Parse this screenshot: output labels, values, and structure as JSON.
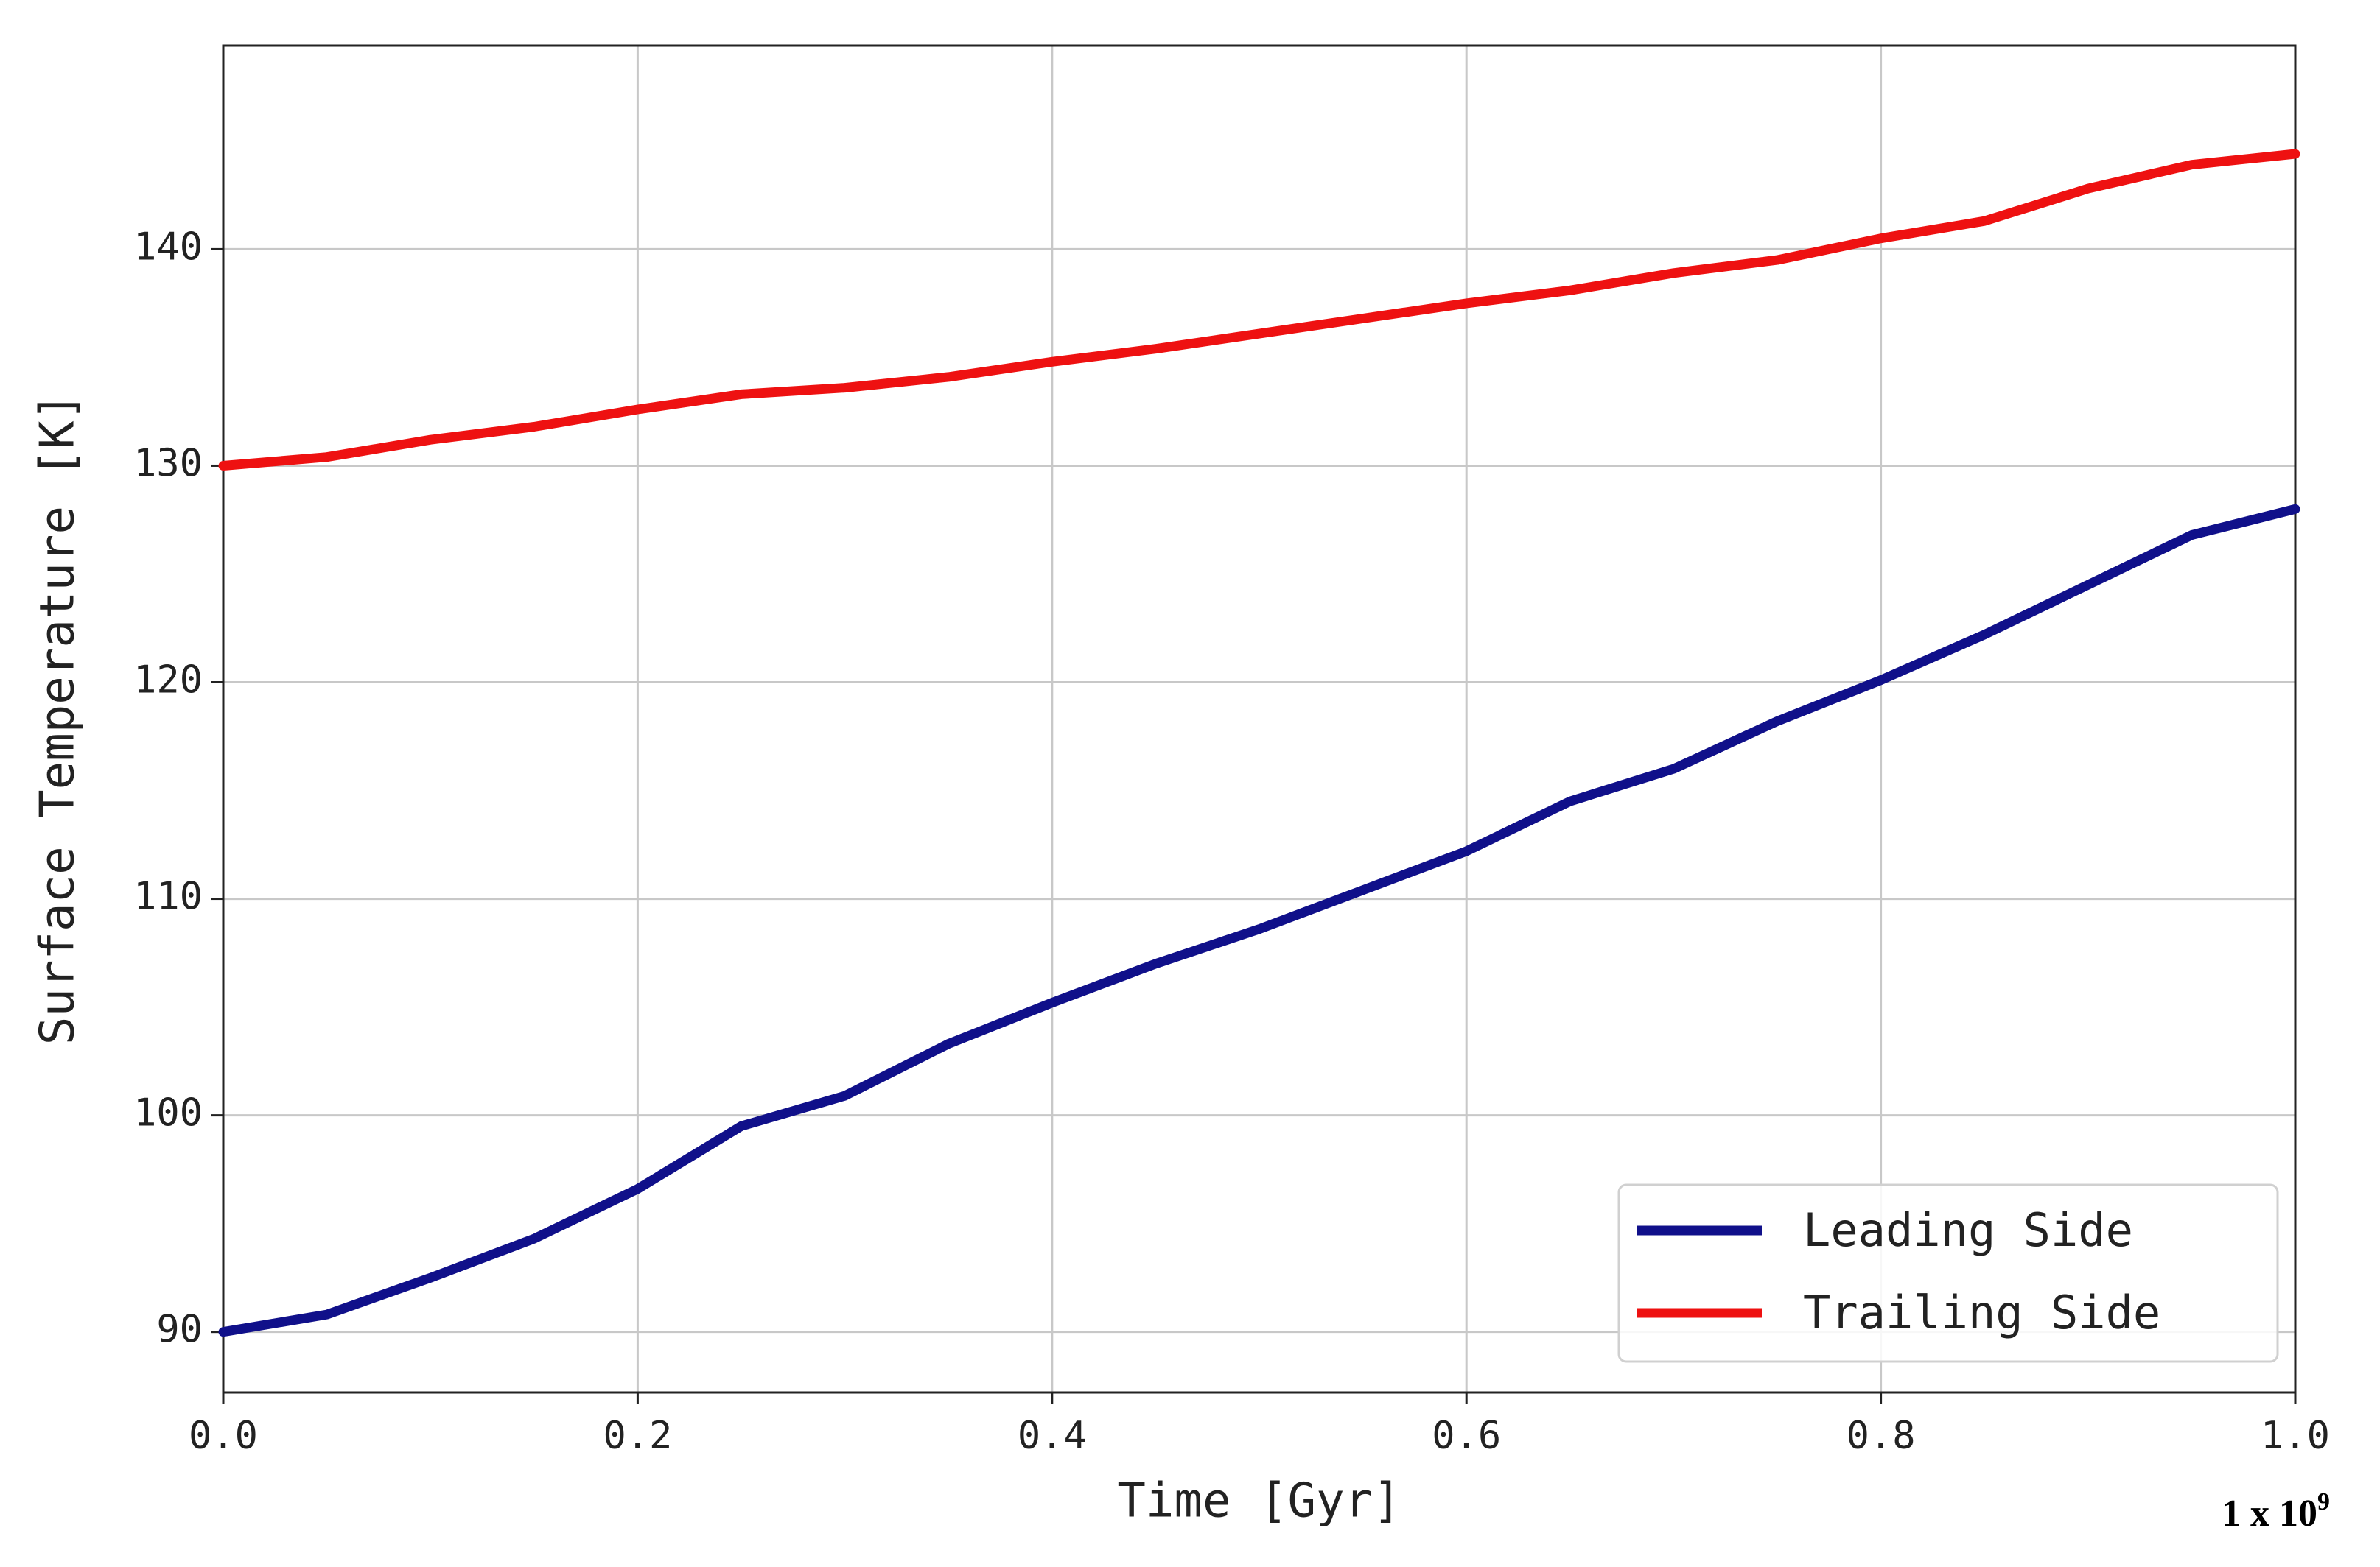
{
  "chart_data": {
    "type": "line",
    "xlabel": "Time [Gyr]",
    "ylabel": "Surface Temperature [K]",
    "x_offset_text": "1 x 10",
    "x_offset_exponent": "9",
    "x": [
      0,
      0.05,
      0.1,
      0.15,
      0.2,
      0.25,
      0.3,
      0.35,
      0.4,
      0.45,
      0.5,
      0.55,
      0.6,
      0.65,
      0.7,
      0.75,
      0.8,
      0.85,
      0.9,
      0.95,
      1.0
    ],
    "series": [
      {
        "name": "Leading Side",
        "color": "#10108a",
        "values": [
          90,
          90.8,
          92.5,
          94.3,
          96.6,
          99.5,
          100.9,
          103.3,
          105.2,
          107,
          108.6,
          110.4,
          112.2,
          114.5,
          116,
          118.2,
          120.1,
          122.2,
          124.5,
          126.8,
          128
        ]
      },
      {
        "name": "Trailing Side",
        "color": "#ee1111",
        "values": [
          130,
          130.4,
          131.2,
          131.8,
          132.6,
          133.3,
          133.6,
          134.1,
          134.8,
          135.4,
          136.1,
          136.8,
          137.5,
          138.1,
          138.9,
          139.5,
          140.5,
          141.3,
          142.8,
          143.9,
          144.4
        ]
      }
    ],
    "xlim": [
      0,
      1.0
    ],
    "ylim": [
      87.2,
      149.4
    ],
    "xticks": [
      {
        "value": 0,
        "label": "0.0"
      },
      0.2,
      0.4,
      0.6,
      0.8,
      {
        "value": 1.0,
        "label": "1.0"
      }
    ],
    "yticks": [
      90,
      100,
      110,
      120,
      130,
      140
    ],
    "grid": true,
    "legend": "lower right"
  }
}
